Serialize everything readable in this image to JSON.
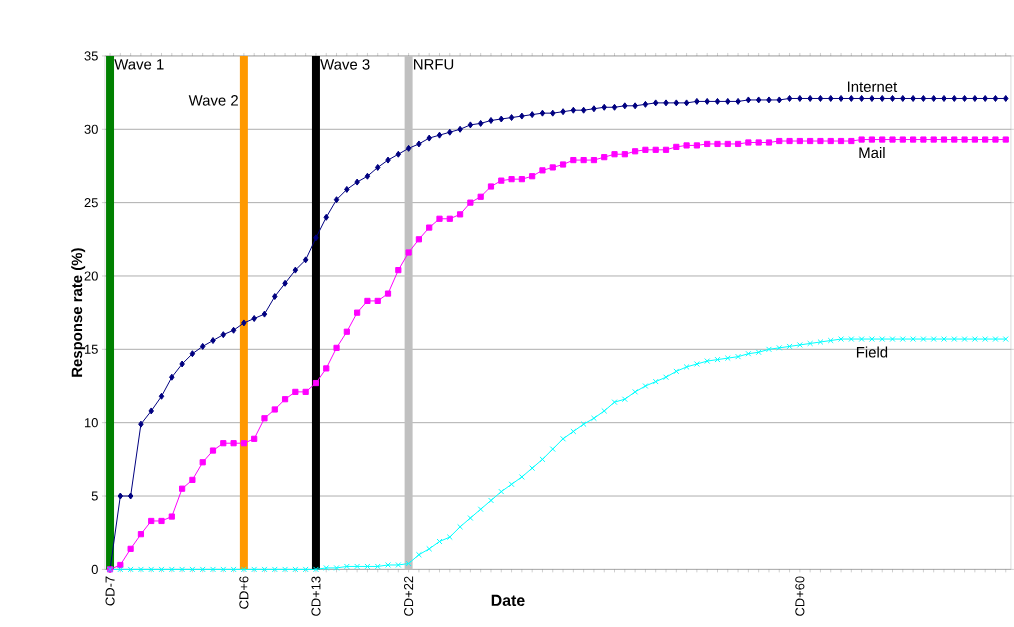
{
  "chart_data": {
    "type": "line",
    "xlabel": "Date",
    "ylabel": "Response rate (%)",
    "categories": [
      "CD-7",
      null,
      null,
      null,
      null,
      null,
      null,
      null,
      null,
      null,
      null,
      null,
      null,
      "CD+6",
      null,
      null,
      null,
      null,
      null,
      null,
      "CD+13",
      null,
      null,
      null,
      null,
      null,
      null,
      null,
      null,
      "CD+22",
      null,
      null,
      null,
      null,
      null,
      null,
      null,
      null,
      null,
      null,
      null,
      null,
      null,
      null,
      null,
      null,
      null,
      null,
      null,
      null,
      null,
      null,
      null,
      null,
      null,
      null,
      null,
      null,
      null,
      null,
      null,
      null,
      null,
      null,
      null,
      null,
      null,
      "CD+60",
      null,
      null,
      null,
      null,
      null,
      null,
      null,
      null,
      null,
      null,
      null,
      null,
      null,
      null,
      null,
      null,
      null,
      null,
      null,
      null
    ],
    "ylim": [
      0,
      35
    ],
    "yticks": [
      0,
      5,
      10,
      15,
      20,
      25,
      30,
      35
    ],
    "grid": "y",
    "series": [
      {
        "name": "Internet",
        "color": "#000080",
        "marker": "diamond",
        "values": [
          0,
          5.0,
          5.0,
          9.9,
          10.8,
          11.8,
          13.1,
          14.0,
          14.7,
          15.2,
          15.6,
          16.0,
          16.3,
          16.8,
          17.1,
          17.4,
          18.6,
          19.5,
          20.4,
          21.1,
          22.6,
          24.0,
          25.2,
          25.9,
          26.4,
          26.8,
          27.4,
          27.9,
          28.3,
          28.7,
          29.0,
          29.4,
          29.6,
          29.8,
          30.0,
          30.3,
          30.4,
          30.6,
          30.7,
          30.8,
          30.9,
          31.0,
          31.1,
          31.1,
          31.2,
          31.3,
          31.3,
          31.4,
          31.5,
          31.5,
          31.6,
          31.6,
          31.7,
          31.8,
          31.8,
          31.8,
          31.8,
          31.9,
          31.9,
          31.9,
          31.9,
          31.9,
          32.0,
          32.0,
          32.0,
          32.0,
          32.1,
          32.1,
          32.1,
          32.1,
          32.1,
          32.1,
          32.1,
          32.1,
          32.1,
          32.1,
          32.1,
          32.1,
          32.1,
          32.1,
          32.1,
          32.1,
          32.1,
          32.1,
          32.1,
          32.1,
          32.1,
          32.1
        ]
      },
      {
        "name": "Mail",
        "color": "#ff00ff",
        "marker": "square",
        "values": [
          0,
          0.3,
          1.4,
          2.4,
          3.3,
          3.3,
          3.6,
          5.5,
          6.1,
          7.3,
          8.1,
          8.6,
          8.6,
          8.6,
          8.9,
          10.3,
          10.9,
          11.6,
          12.1,
          12.1,
          12.7,
          13.7,
          15.1,
          16.2,
          17.5,
          18.3,
          18.3,
          18.8,
          20.4,
          21.6,
          22.5,
          23.3,
          23.9,
          23.9,
          24.2,
          25.0,
          25.4,
          26.1,
          26.5,
          26.6,
          26.6,
          26.8,
          27.2,
          27.4,
          27.6,
          27.9,
          27.9,
          27.9,
          28.1,
          28.3,
          28.3,
          28.5,
          28.6,
          28.6,
          28.6,
          28.8,
          28.9,
          28.9,
          29.0,
          29.0,
          29.0,
          29.0,
          29.1,
          29.1,
          29.1,
          29.2,
          29.2,
          29.2,
          29.2,
          29.2,
          29.2,
          29.2,
          29.2,
          29.3,
          29.3,
          29.3,
          29.3,
          29.3,
          29.3,
          29.3,
          29.3,
          29.3,
          29.3,
          29.3,
          29.3,
          29.3,
          29.3,
          29.3
        ]
      },
      {
        "name": "Field",
        "color": "#00ffff",
        "marker": "cross",
        "values": [
          0,
          0,
          0,
          0,
          0,
          0,
          0,
          0,
          0,
          0,
          0,
          0,
          0,
          0,
          0,
          0,
          0,
          0,
          0,
          0,
          0,
          0.1,
          0.1,
          0.2,
          0.2,
          0.2,
          0.2,
          0.3,
          0.3,
          0.4,
          1.0,
          1.4,
          1.9,
          2.2,
          2.9,
          3.5,
          4.1,
          4.7,
          5.3,
          5.8,
          6.3,
          6.9,
          7.5,
          8.2,
          8.9,
          9.4,
          9.9,
          10.3,
          10.8,
          11.4,
          11.6,
          12.1,
          12.5,
          12.8,
          13.1,
          13.5,
          13.8,
          14.0,
          14.2,
          14.3,
          14.4,
          14.5,
          14.7,
          14.8,
          15.0,
          15.1,
          15.2,
          15.3,
          15.4,
          15.5,
          15.6,
          15.7,
          15.7,
          15.7,
          15.7,
          15.7,
          15.7,
          15.7,
          15.7,
          15.7,
          15.7,
          15.7,
          15.7,
          15.7,
          15.7,
          15.7,
          15.7,
          15.7
        ]
      }
    ],
    "ref_lines": [
      {
        "axis": "x",
        "value": "CD-7",
        "label": "Wave 1",
        "color": "#008000"
      },
      {
        "axis": "x",
        "value": "CD+6",
        "label": "Wave 2",
        "color": "#ff9900"
      },
      {
        "axis": "x",
        "value": "CD+13",
        "label": "Wave 3",
        "color": "#000000"
      },
      {
        "axis": "x",
        "value": "CD+22",
        "label": "NRFU",
        "color": "#c0c0c0"
      }
    ]
  }
}
